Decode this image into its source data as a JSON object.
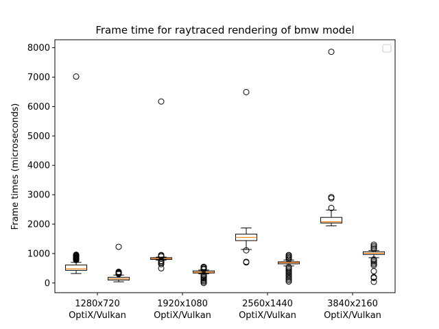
{
  "chart_data": {
    "type": "box",
    "title": "Frame time for raytraced rendering of bmw model",
    "xlabel": "",
    "ylabel": "Frame times (microseconds)",
    "ylim": [
      -330,
      8270
    ],
    "yticks": [
      0,
      1000,
      2000,
      3000,
      4000,
      5000,
      6000,
      7000,
      8000
    ],
    "categories": [
      {
        "resolution": "1280x720",
        "apis": "OptiX/Vulkan"
      },
      {
        "resolution": "1920x1080",
        "apis": "OptiX/Vulkan"
      },
      {
        "resolution": "2560x1440",
        "apis": "OptiX/Vulkan"
      },
      {
        "resolution": "3840x2160",
        "apis": "OptiX/Vulkan"
      }
    ],
    "legend": {
      "placement": "upper-right",
      "entries": []
    },
    "boxes": [
      {
        "group": "1280x720",
        "api": "OptiX",
        "whisker_low": 320,
        "q1": 430,
        "median": 480,
        "q3": 610,
        "whisker_high": 700,
        "outliers": [
          7020,
          780,
          800,
          820,
          840,
          860,
          880,
          900,
          920,
          940,
          960
        ]
      },
      {
        "group": "1280x720",
        "api": "Vulkan",
        "whisker_low": 40,
        "q1": 100,
        "median": 140,
        "q3": 190,
        "whisker_high": 270,
        "outliers": [
          1230,
          300,
          320,
          340,
          360,
          380
        ]
      },
      {
        "group": "1920x1080",
        "api": "OptiX",
        "whisker_low": 780,
        "q1": 800,
        "median": 830,
        "q3": 860,
        "whisker_high": 880,
        "outliers": [
          6170,
          500,
          640,
          680,
          720,
          750,
          900,
          930,
          950
        ]
      },
      {
        "group": "1920x1080",
        "api": "Vulkan",
        "whisker_low": 310,
        "q1": 340,
        "median": 370,
        "q3": 410,
        "whisker_high": 440,
        "outliers": [
          0,
          40,
          80,
          120,
          160,
          200,
          240,
          270,
          460,
          490,
          520,
          550
        ]
      },
      {
        "group": "2560x1440",
        "api": "OptiX",
        "whisker_low": 1140,
        "q1": 1440,
        "median": 1550,
        "q3": 1660,
        "whisker_high": 1870,
        "outliers": [
          6490,
          1110,
          720,
          700
        ]
      },
      {
        "group": "2560x1440",
        "api": "Vulkan",
        "whisker_low": 580,
        "q1": 650,
        "median": 690,
        "q3": 720,
        "whisker_high": 780,
        "outliers": [
          50,
          100,
          150,
          200,
          250,
          300,
          350,
          400,
          450,
          500,
          540,
          810,
          850,
          880,
          920,
          950
        ]
      },
      {
        "group": "3840x2160",
        "api": "OptiX",
        "whisker_low": 1940,
        "q1": 2040,
        "median": 2080,
        "q3": 2230,
        "whisker_high": 2480,
        "outliers": [
          7860,
          2920,
          2880,
          2550
        ]
      },
      {
        "group": "3840x2160",
        "api": "Vulkan",
        "whisker_low": 860,
        "q1": 970,
        "median": 1010,
        "q3": 1060,
        "whisker_high": 1100,
        "outliers": [
          40,
          170,
          200,
          400,
          600,
          650,
          700,
          750,
          800,
          1150,
          1200,
          1250,
          1300
        ]
      }
    ]
  }
}
